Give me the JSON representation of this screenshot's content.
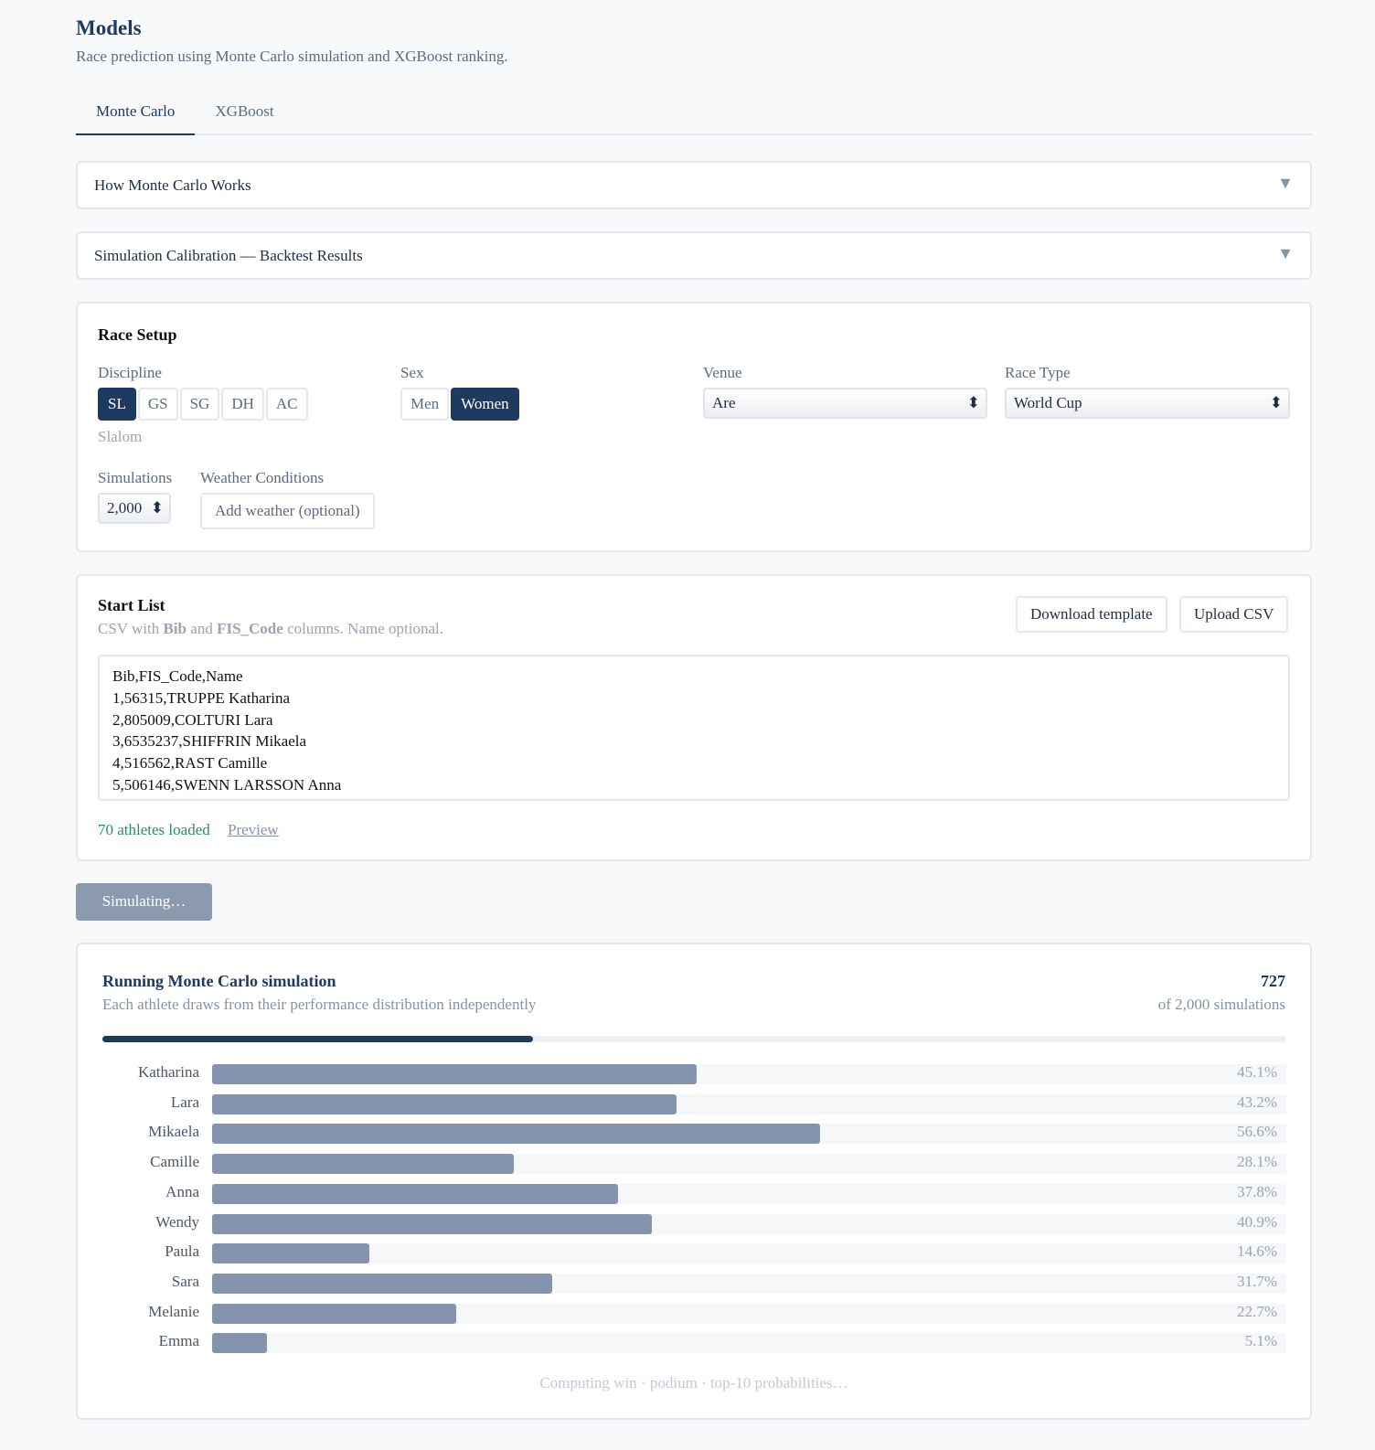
{
  "header": {
    "title": "Models",
    "subtitle": "Race prediction using Monte Carlo simulation and XGBoost ranking."
  },
  "tabs": [
    "Monte Carlo",
    "XGBoost"
  ],
  "accordions": [
    "How Monte Carlo Works",
    "Simulation Calibration — Backtest Results"
  ],
  "race_setup": {
    "title": "Race Setup",
    "discipline_label": "Discipline",
    "disciplines": [
      "SL",
      "GS",
      "SG",
      "DH",
      "AC"
    ],
    "discipline_name": "Slalom",
    "sex_label": "Sex",
    "sexes": [
      "Men",
      "Women"
    ],
    "venue_label": "Venue",
    "venue": "Are",
    "race_type_label": "Race Type",
    "race_type": "World Cup",
    "simulations_label": "Simulations",
    "simulations": "2,000",
    "weather_label": "Weather Conditions",
    "weather_button": "Add weather (optional)"
  },
  "start_list": {
    "title": "Start List",
    "desc": [
      "CSV with ",
      "Bib",
      " and ",
      "FIS_Code",
      " columns. Name optional."
    ],
    "buttons": [
      "Download template",
      "Upload CSV"
    ],
    "csv_lines": [
      "Bib,FIS_Code,Name",
      "1,56315,TRUPPE Katharina",
      "2,805009,COLTURI Lara",
      "3,6535237,SHIFFRIN Mikaela",
      "4,516562,RAST Camille",
      "5,506146,SWENN LARSSON Anna"
    ],
    "status": "70 athletes loaded",
    "preview": "Preview"
  },
  "run_button": "Simulating…",
  "simulation": {
    "title": "Running Monte Carlo simulation",
    "subtitle": "Each athlete draws from their performance distribution independently",
    "completed": 727,
    "total": 2000,
    "total_label": "of 2,000 simulations",
    "athletes": [
      {
        "name": "Katharina",
        "value": 45.1,
        "label": "45.1%"
      },
      {
        "name": "Lara",
        "value": 43.2,
        "label": "43.2%"
      },
      {
        "name": "Mikaela",
        "value": 56.6,
        "label": "56.6%"
      },
      {
        "name": "Camille",
        "value": 28.1,
        "label": "28.1%"
      },
      {
        "name": "Anna",
        "value": 37.8,
        "label": "37.8%"
      },
      {
        "name": "Wendy",
        "value": 40.9,
        "label": "40.9%"
      },
      {
        "name": "Paula",
        "value": 14.6,
        "label": "14.6%"
      },
      {
        "name": "Sara",
        "value": 31.7,
        "label": "31.7%"
      },
      {
        "name": "Melanie",
        "value": 22.7,
        "label": "22.7%"
      },
      {
        "name": "Emma",
        "value": 5.1,
        "label": "5.1%"
      }
    ],
    "footer": "Computing win · podium · top-10 probabilities…"
  }
}
